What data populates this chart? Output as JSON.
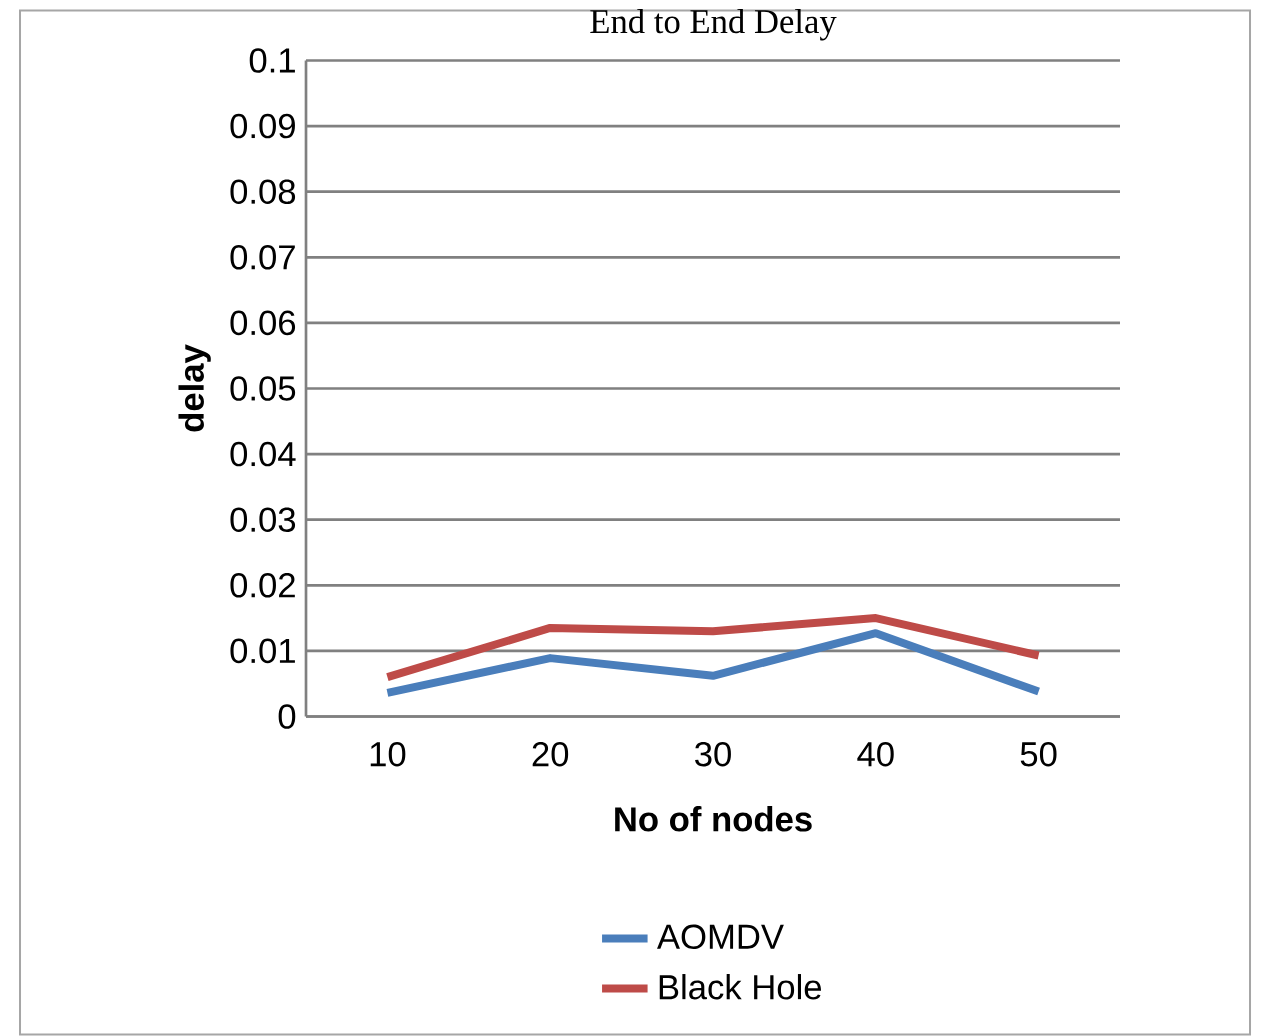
{
  "chart_data": {
    "type": "line",
    "title": "End to End Delay",
    "xlabel": "No of nodes",
    "ylabel": "delay",
    "categories": [
      "10",
      "20",
      "30",
      "40",
      "50"
    ],
    "series": [
      {
        "name": "AOMDV",
        "color": "#4a7ebb",
        "values": [
          0.0036,
          0.0089,
          0.0062,
          0.0127,
          0.0038
        ]
      },
      {
        "name": "Black Hole",
        "color": "#be4b48",
        "values": [
          0.006,
          0.0135,
          0.013,
          0.015,
          0.0093
        ]
      }
    ],
    "ylim": [
      0,
      0.1
    ],
    "yticks": [
      0,
      0.01,
      0.02,
      0.03,
      0.04,
      0.05,
      0.06,
      0.07,
      0.08,
      0.09,
      0.1
    ],
    "grid": "y",
    "legend": "bottom",
    "marker": "none",
    "line_style": "solid"
  }
}
